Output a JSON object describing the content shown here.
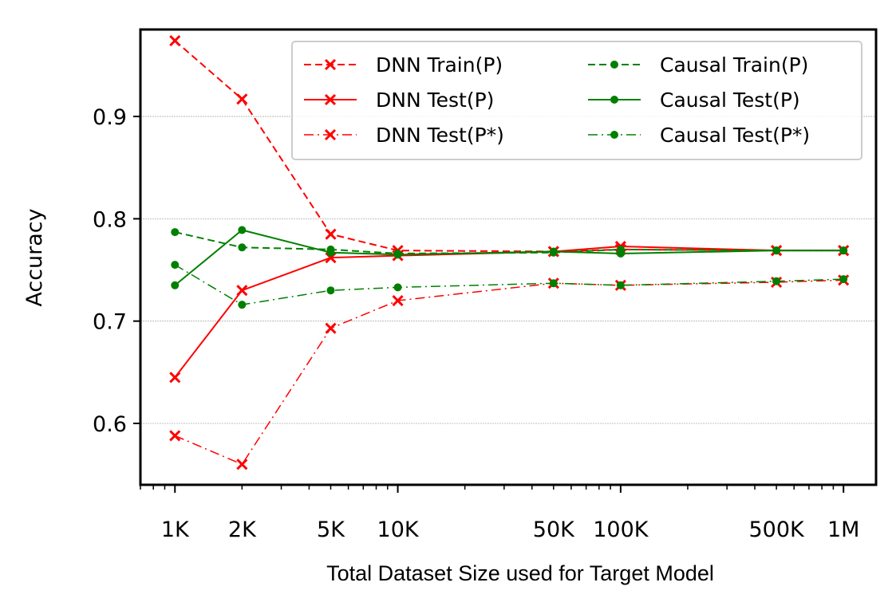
{
  "chart_data": {
    "type": "line",
    "xscale": "log",
    "xlabel": "Total Dataset Size used for Target Model",
    "ylabel": "Accuracy",
    "x": [
      1000,
      2000,
      5000,
      10000,
      50000,
      100000,
      500000,
      1000000
    ],
    "x_tick_labels": [
      "1K",
      "2K",
      "5K",
      "10K",
      "50K",
      "100K",
      "500K",
      "1M"
    ],
    "y_ticks": [
      0.6,
      0.7,
      0.8,
      0.9
    ],
    "y_tick_labels": [
      "0.6",
      "0.7",
      "0.8",
      "0.9"
    ],
    "xlim": [
      700,
      1400000
    ],
    "ylim": [
      0.54,
      0.985
    ],
    "grid": "horizontal",
    "legend_position": "top-right",
    "series": [
      {
        "name": "DNN Train(P)",
        "color": "#ff0000",
        "marker": "x",
        "linestyle": "dashed",
        "values": [
          0.974,
          0.917,
          0.785,
          0.769,
          0.768,
          0.77,
          0.769,
          0.769
        ]
      },
      {
        "name": "DNN Test(P)",
        "color": "#ff0000",
        "marker": "x",
        "linestyle": "solid",
        "values": [
          0.645,
          0.73,
          0.762,
          0.764,
          0.768,
          0.773,
          0.769,
          0.769
        ]
      },
      {
        "name": "DNN Test(P*)",
        "color": "#ff0000",
        "marker": "x",
        "linestyle": "dashdot",
        "values": [
          0.588,
          0.56,
          0.693,
          0.72,
          0.737,
          0.735,
          0.738,
          0.74
        ]
      },
      {
        "name": "Causal Train(P)",
        "color": "#008000",
        "marker": "dot",
        "linestyle": "dashed",
        "values": [
          0.787,
          0.772,
          0.77,
          0.766,
          0.767,
          0.77,
          0.769,
          0.769
        ]
      },
      {
        "name": "Causal Test(P)",
        "color": "#008000",
        "marker": "dot",
        "linestyle": "solid",
        "values": [
          0.735,
          0.789,
          0.767,
          0.765,
          0.768,
          0.766,
          0.769,
          0.769
        ]
      },
      {
        "name": "Causal Test(P*)",
        "color": "#008000",
        "marker": "dot",
        "linestyle": "dashdot",
        "values": [
          0.755,
          0.716,
          0.73,
          0.733,
          0.737,
          0.735,
          0.739,
          0.741
        ]
      }
    ]
  }
}
